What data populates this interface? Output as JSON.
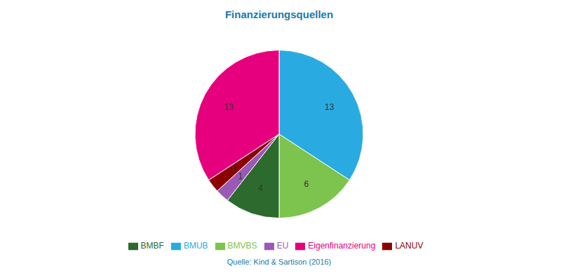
{
  "chart_data": {
    "type": "pie",
    "title": "Finanzierungsquellen",
    "categories": [
      "BMUB",
      "BMVBS",
      "BMBF",
      "EU",
      "LANUV",
      "Eigenfinanzierung"
    ],
    "values": [
      13,
      6,
      4,
      1,
      1,
      13
    ],
    "colors": [
      "#29abe2",
      "#7dc44e",
      "#2d6a2d",
      "#9b59b6",
      "#8b0000",
      "#e6007e"
    ],
    "data_labels": true,
    "legend": "bottom",
    "annotations": [
      "Quelle: Kind & Sartison (2016)"
    ]
  }
}
